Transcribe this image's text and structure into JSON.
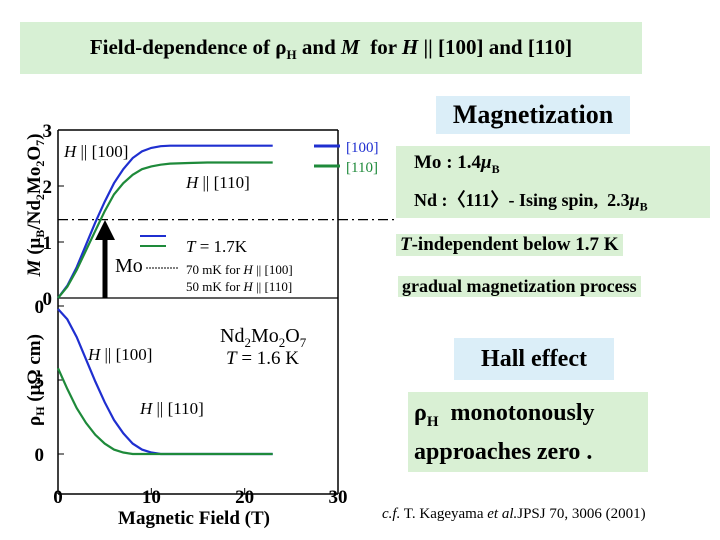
{
  "title": {
    "prefix": "Field-dependence of ",
    "rho": "ρ",
    "rho_sub": "H",
    "middle": " and ",
    "M": "M",
    "for": "  for ",
    "H": "H",
    "suffix": " || [100] and [110]"
  },
  "magnetization_heading": "Magnetization",
  "magnetization_info": {
    "mo_label": "Mo",
    "mo_value": " : 1.4",
    "mo_unit_mu": "μ",
    "mo_unit_sub": "B",
    "nd_label": "Nd",
    "nd_value": " :〈111〉- Ising spin,  2.3",
    "nd_unit_mu": "μ",
    "nd_unit_sub": "B"
  },
  "notes": {
    "t_independent_T": "T",
    "t_independent_rest": "-independent below 1.7 K",
    "gradual": "gradual magnetization process"
  },
  "hall_heading": "Hall effect",
  "hall_info": {
    "rho": "ρ",
    "rho_sub": "H",
    "line1_rest": "  monotonously",
    "line2": "approaches zero ."
  },
  "reference": {
    "cf": "c.f.",
    "authors": " T. Kageyama ",
    "etal": "et al.",
    "journal": "JPSJ 70, 3006 (2001)"
  },
  "chart_data": [
    {
      "type": "line",
      "panel": "magnetization",
      "ylabel": "M (μB/Nd2Mo2O7)",
      "ylabel_parts": {
        "M": "M",
        "open": " (",
        "mu": "μ",
        "B": "B",
        "slash": "/Nd",
        "rest": "Mo",
        "O": "O",
        "close": ")",
        "n2": "2",
        "n7": "7"
      },
      "xlim": [
        0,
        30
      ],
      "ylim": [
        0,
        3
      ],
      "yticks": [
        "3",
        "2",
        "1",
        "0"
      ],
      "reference_line_y": 1.4,
      "series": [
        {
          "name": "[100]",
          "label": "H || [100]",
          "color": "#1f2fd0",
          "x": [
            0,
            1,
            2,
            3,
            4,
            5,
            6,
            7,
            8,
            9,
            10,
            11,
            12,
            13,
            14,
            16,
            18,
            20,
            23
          ],
          "y": [
            0,
            0.22,
            0.55,
            0.95,
            1.35,
            1.72,
            2.05,
            2.3,
            2.5,
            2.62,
            2.68,
            2.71,
            2.72,
            2.72,
            2.72,
            2.72,
            2.72,
            2.72,
            2.72
          ]
        },
        {
          "name": "[110]",
          "label": "H || [110]",
          "color": "#1e8a3a",
          "x": [
            0,
            1,
            2,
            3,
            4,
            5,
            6,
            7,
            8,
            9,
            10,
            11,
            12,
            14,
            16,
            18,
            20,
            23
          ],
          "y": [
            0,
            0.2,
            0.5,
            0.85,
            1.2,
            1.55,
            1.85,
            2.05,
            2.2,
            2.3,
            2.35,
            2.38,
            2.4,
            2.41,
            2.42,
            2.42,
            2.42,
            2.42
          ]
        }
      ],
      "legend": {
        "items": [
          "[100]",
          "[110]"
        ],
        "position": "top-right"
      },
      "annotations": {
        "h100_H": "H",
        "h100_rest": " || [100]",
        "h110_H": "H",
        "h110_rest": " || [110]",
        "mo": "Mo",
        "temp_T": "T",
        "temp_rest": " = 1.7K",
        "sweep1_text": "70 mK for ",
        "sweep1_H": "H",
        "sweep1_dir": " || [100]",
        "sweep2_text": "50 mK for ",
        "sweep2_H": "H",
        "sweep2_dir": " || [110]"
      }
    },
    {
      "type": "line",
      "panel": "hall",
      "ylabel": "ρH (μΩ cm)",
      "ylabel_parts": {
        "rho": "ρ",
        "H": "H",
        "rest": " (μΩ cm)"
      },
      "xlabel": "Magnetic Field (T)",
      "xlim": [
        0,
        30
      ],
      "xticks": [
        "0",
        "10",
        "20",
        "30"
      ],
      "ylim": [
        -10,
        0
      ],
      "yticks": [
        "0",
        "5",
        "0"
      ],
      "series": [
        {
          "name": "[100]",
          "label": "H || [100]",
          "color": "#1f2fd0",
          "x": [
            0,
            1,
            2,
            3,
            4,
            5,
            6,
            7,
            8,
            9,
            10,
            11,
            12,
            14,
            16,
            18,
            20,
            23
          ],
          "y": [
            -0.2,
            -0.9,
            -2.1,
            -3.6,
            -5.1,
            -6.5,
            -7.7,
            -8.6,
            -9.3,
            -9.7,
            -9.9,
            -10.0,
            -10.0,
            -10.0,
            -10.0,
            -10.0,
            -10.0,
            -10.0
          ]
        },
        {
          "name": "[110]",
          "label": "H || [110]",
          "color": "#1e8a3a",
          "x": [
            0,
            1,
            2,
            3,
            4,
            5,
            6,
            7,
            8,
            9,
            10,
            11,
            12,
            14,
            16,
            18,
            20,
            23
          ],
          "y": [
            -4.2,
            -5.6,
            -6.9,
            -7.9,
            -8.7,
            -9.3,
            -9.7,
            -9.9,
            -10.0,
            -10.0,
            -10.0,
            -10.0,
            -10.0,
            -10.0,
            -10.0,
            -10.0,
            -10.0,
            -10.0
          ]
        }
      ],
      "annotations": {
        "h100_H": "H",
        "h100_rest": " || [100]",
        "h110_H": "H",
        "h110_rest": " || [110]",
        "sample_nd": "Nd",
        "sample_mo": "Mo",
        "sample_o": "O",
        "n2a": "2",
        "n2b": "2",
        "n7": "7",
        "temp_T": "T",
        "temp_rest": " = 1.6 K"
      }
    }
  ]
}
